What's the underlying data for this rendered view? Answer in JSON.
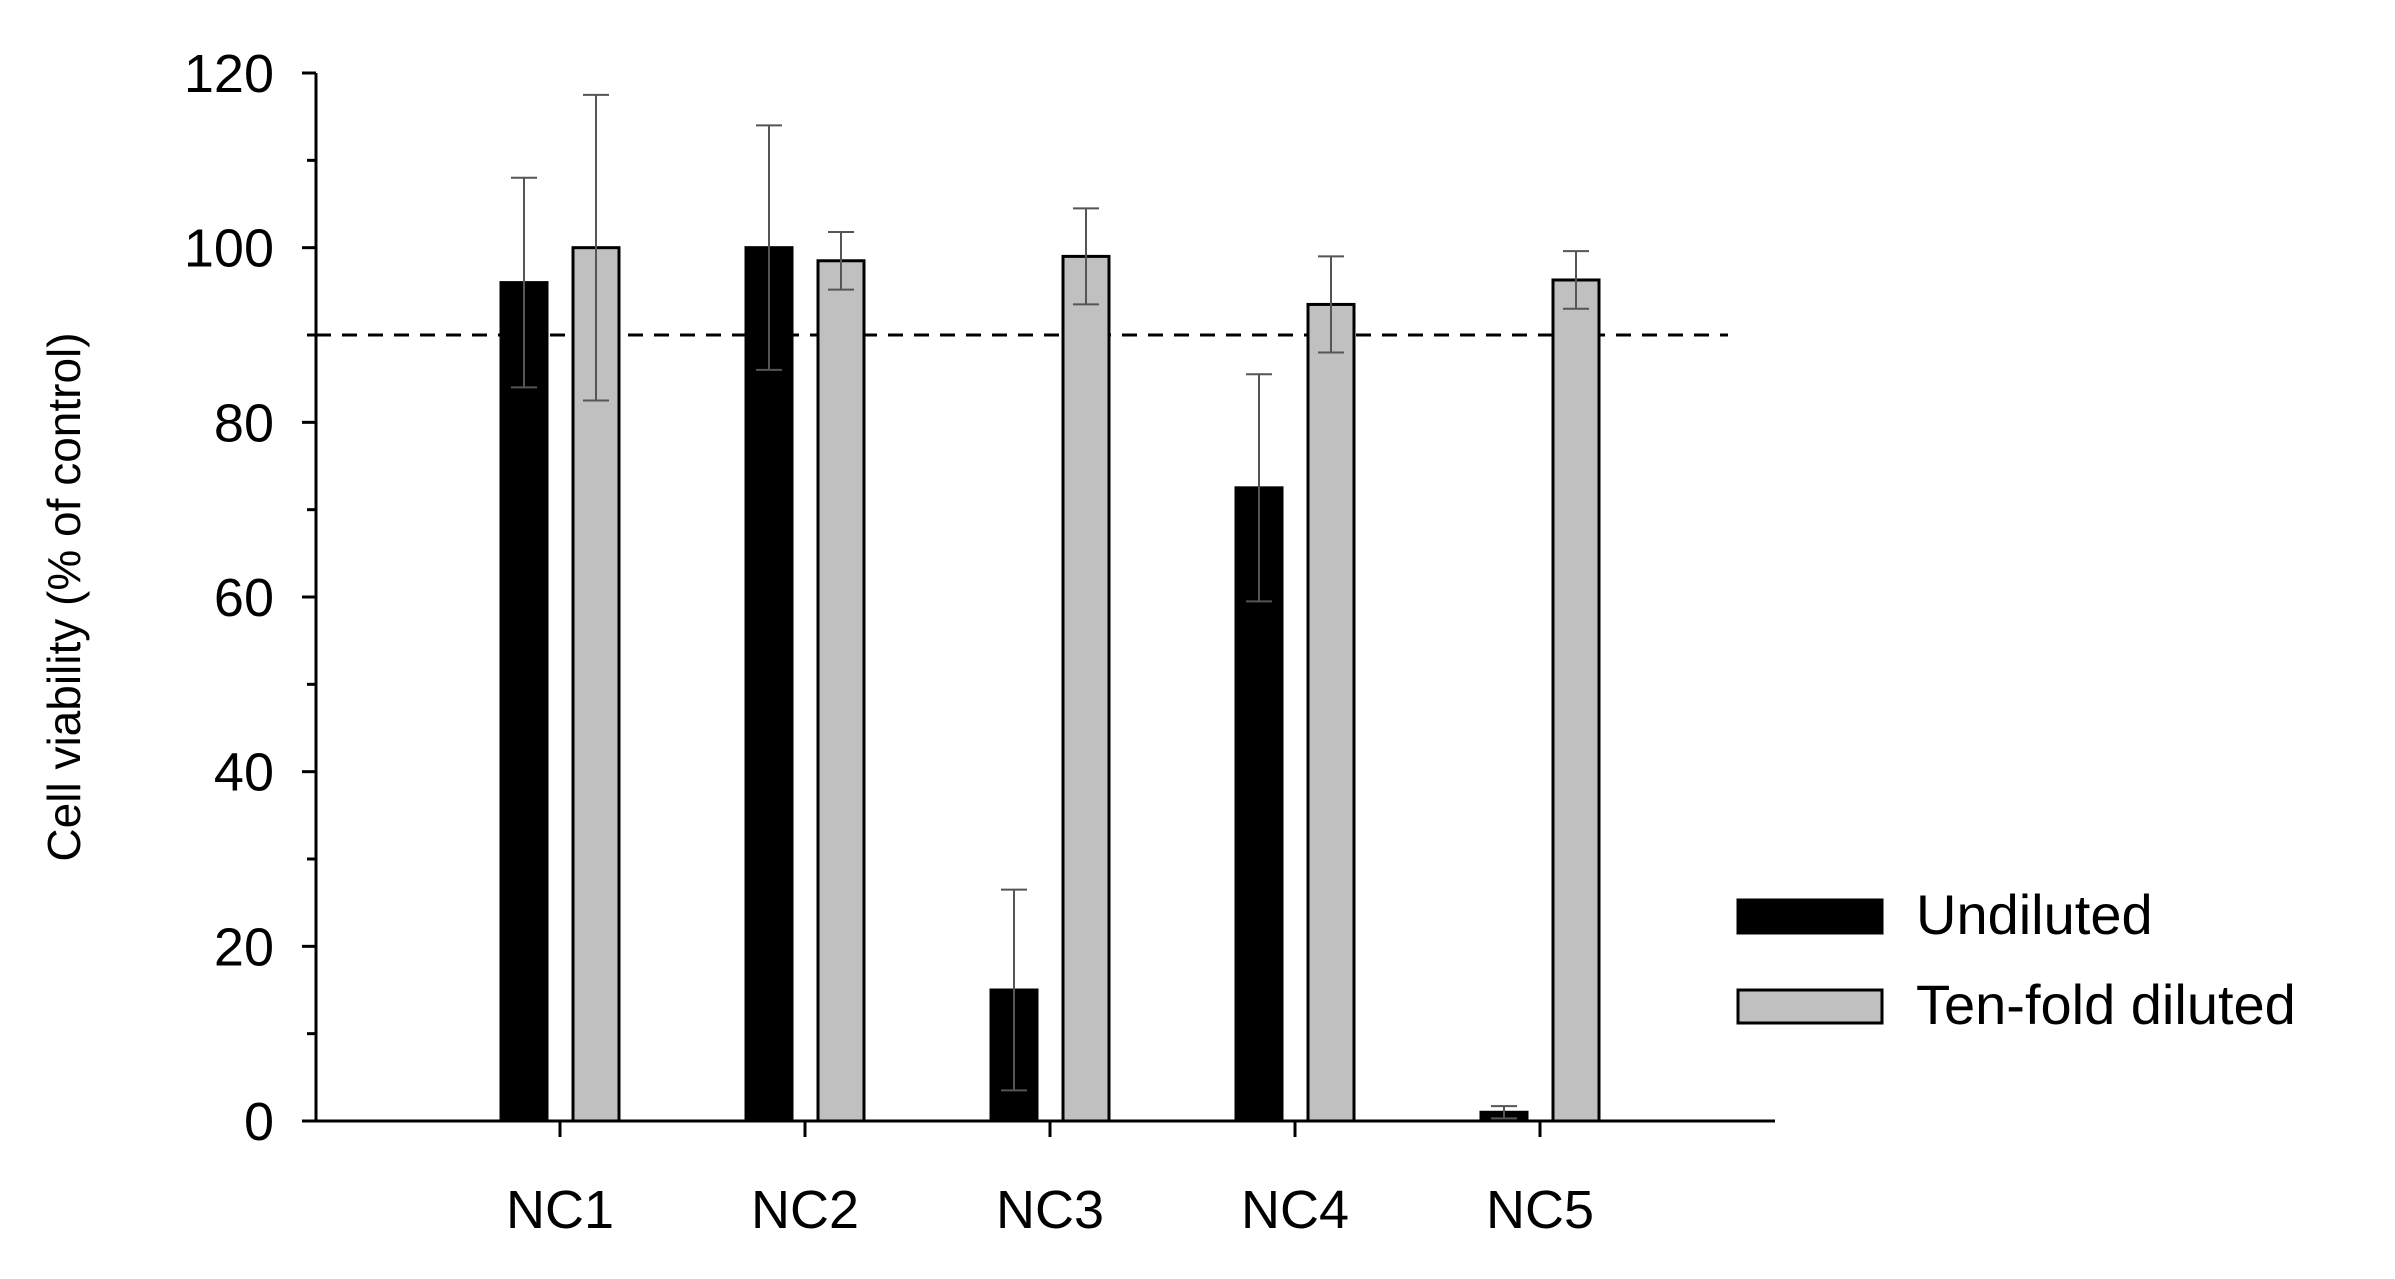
{
  "chart_data": {
    "type": "bar",
    "title": "",
    "xlabel": "",
    "ylabel": "Cell viability (% of control)",
    "ylim": [
      0,
      120
    ],
    "yticks": [
      0,
      20,
      40,
      60,
      80,
      100,
      120
    ],
    "categories": [
      "NC1",
      "NC2",
      "NC3",
      "NC4",
      "NC5"
    ],
    "series": [
      {
        "name": "Undiluted",
        "color": "#000000",
        "values": [
          96,
          100,
          15,
          72.5,
          1
        ],
        "error": [
          12,
          14,
          11.5,
          13,
          0.7
        ]
      },
      {
        "name": "Ten-fold diluted",
        "color": "#c0c0c0",
        "values": [
          100,
          98.5,
          99,
          93.5,
          96.3
        ],
        "error": [
          17.5,
          3.3,
          5.5,
          5.5,
          3.3
        ]
      }
    ],
    "reference_line": {
      "y": 90,
      "style": "dashed"
    },
    "legend_position": "bottom-right",
    "grid": false
  }
}
